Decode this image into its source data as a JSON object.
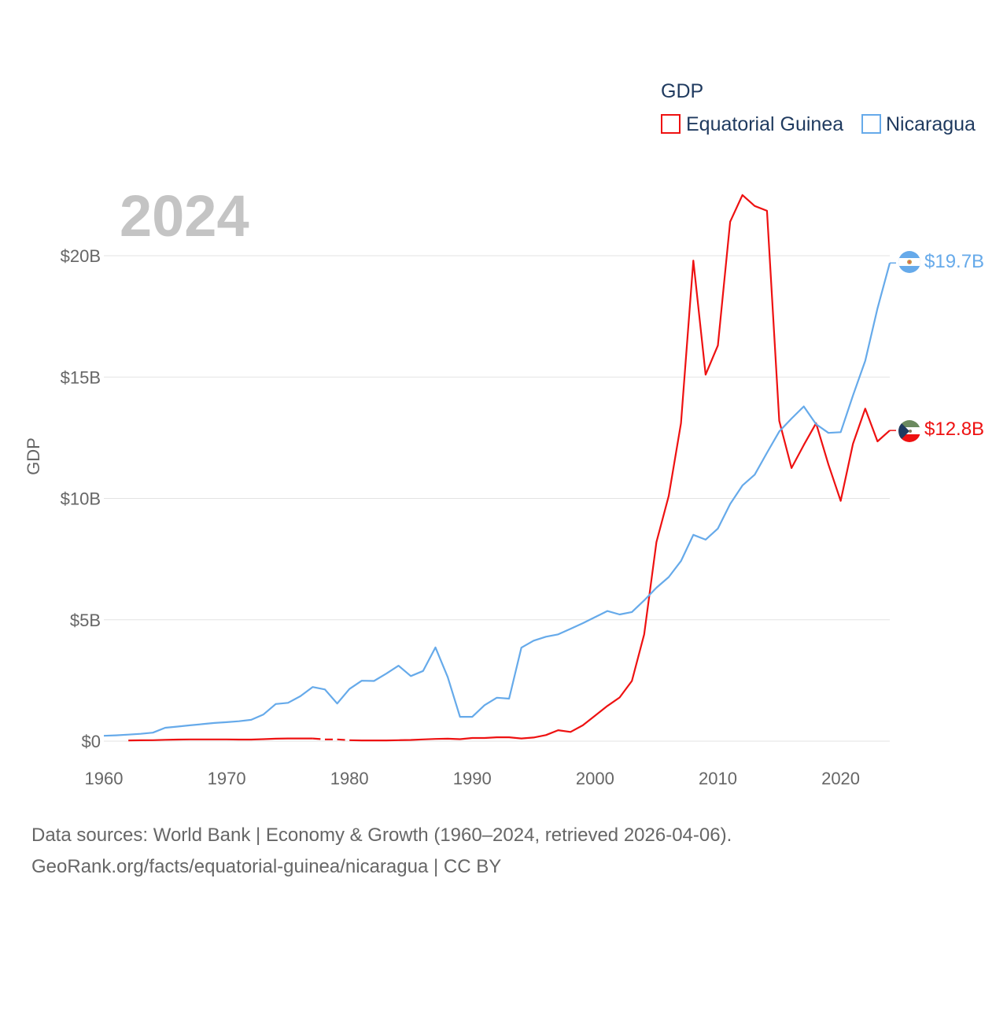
{
  "legend": {
    "title": "GDP",
    "items": [
      {
        "name": "Equatorial Guinea",
        "color": "#ee1111"
      },
      {
        "name": "Nicaragua",
        "color": "#66aaea"
      }
    ]
  },
  "year_label": "2024",
  "footer": {
    "line1": "Data sources: World Bank | Economy & Growth (1960–2024, retrieved 2026-04-06).",
    "line2": "GeoRank.org/facts/equatorial-guinea/nicaragua | CC BY"
  },
  "chart_data": {
    "type": "line",
    "title": "GDP",
    "xlabel": "",
    "ylabel": "GDP",
    "xlim": [
      1960,
      2024
    ],
    "ylim": [
      0,
      22500000000
    ],
    "x_ticks": [
      1960,
      1970,
      1980,
      1990,
      2000,
      2010,
      2020
    ],
    "x_tick_labels": [
      "1960",
      "1970",
      "1980",
      "1990",
      "2000",
      "2010",
      "2020"
    ],
    "y_ticks": [
      0,
      5000000000,
      10000000000,
      15000000000,
      20000000000
    ],
    "y_tick_labels": [
      "$0",
      "$5B",
      "$10B",
      "$15B",
      "$20B"
    ],
    "grid": true,
    "legend_position": "top-right",
    "series": [
      {
        "name": "Equatorial Guinea",
        "color": "#ee1111",
        "end_label": "$12.8B",
        "flag": "equatorial-guinea-flag-icon",
        "gap_years": [
          1978,
          1979
        ],
        "x": [
          1962,
          1963,
          1964,
          1965,
          1966,
          1967,
          1968,
          1969,
          1970,
          1971,
          1972,
          1973,
          1974,
          1975,
          1976,
          1977,
          1978,
          1979,
          1980,
          1981,
          1982,
          1983,
          1984,
          1985,
          1986,
          1987,
          1988,
          1989,
          1990,
          1991,
          1992,
          1993,
          1994,
          1995,
          1996,
          1997,
          1998,
          1999,
          2000,
          2001,
          2002,
          2003,
          2004,
          2005,
          2006,
          2007,
          2008,
          2009,
          2010,
          2011,
          2012,
          2013,
          2014,
          2015,
          2016,
          2017,
          2018,
          2019,
          2020,
          2021,
          2022,
          2023,
          2024
        ],
        "values": [
          30000000,
          35000000,
          40000000,
          55000000,
          65000000,
          70000000,
          70000000,
          70000000,
          70000000,
          65000000,
          65000000,
          80000000,
          100000000,
          110000000,
          110000000,
          110000000,
          70000000,
          70000000,
          40000000,
          30000000,
          30000000,
          30000000,
          40000000,
          50000000,
          70000000,
          90000000,
          100000000,
          80000000,
          130000000,
          130000000,
          160000000,
          160000000,
          110000000,
          150000000,
          250000000,
          450000000,
          380000000,
          650000000,
          1050000000,
          1450000000,
          1800000000,
          2480000000,
          4400000000,
          8200000000,
          10100000000,
          13100000000,
          19800000000,
          15100000000,
          16300000000,
          21400000000,
          22500000000,
          22050000000,
          21850000000,
          13200000000,
          11250000000,
          12200000000,
          13100000000,
          11400000000,
          9900000000,
          12250000000,
          13700000000,
          12350000000,
          12800000000
        ]
      },
      {
        "name": "Nicaragua",
        "color": "#66aaea",
        "end_label": "$19.7B",
        "flag": "nicaragua-flag-icon",
        "gap_years": [],
        "x": [
          1960,
          1961,
          1962,
          1963,
          1964,
          1965,
          1966,
          1967,
          1968,
          1969,
          1970,
          1971,
          1972,
          1973,
          1974,
          1975,
          1976,
          1977,
          1978,
          1979,
          1980,
          1981,
          1982,
          1983,
          1984,
          1985,
          1986,
          1987,
          1988,
          1989,
          1990,
          1991,
          1992,
          1993,
          1994,
          1995,
          1996,
          1997,
          1998,
          1999,
          2000,
          2001,
          2002,
          2003,
          2004,
          2005,
          2006,
          2007,
          2008,
          2009,
          2010,
          2011,
          2012,
          2013,
          2014,
          2015,
          2016,
          2017,
          2018,
          2019,
          2020,
          2021,
          2022,
          2023,
          2024
        ],
        "values": [
          220000000,
          240000000,
          270000000,
          300000000,
          350000000,
          550000000,
          600000000,
          650000000,
          700000000,
          750000000,
          780000000,
          820000000,
          880000000,
          1100000000,
          1530000000,
          1580000000,
          1850000000,
          2230000000,
          2130000000,
          1550000000,
          2150000000,
          2490000000,
          2480000000,
          2780000000,
          3110000000,
          2680000000,
          2890000000,
          3860000000,
          2640000000,
          1000000000,
          1000000000,
          1480000000,
          1790000000,
          1750000000,
          3850000000,
          4140000000,
          4300000000,
          4400000000,
          4630000000,
          4860000000,
          5110000000,
          5360000000,
          5220000000,
          5320000000,
          5800000000,
          6320000000,
          6760000000,
          7420000000,
          8500000000,
          8300000000,
          8760000000,
          9770000000,
          10530000000,
          10980000000,
          11880000000,
          12760000000,
          13290000000,
          13790000000,
          13060000000,
          12700000000,
          12730000000,
          14240000000,
          15670000000,
          17830000000,
          19700000000
        ]
      }
    ]
  }
}
